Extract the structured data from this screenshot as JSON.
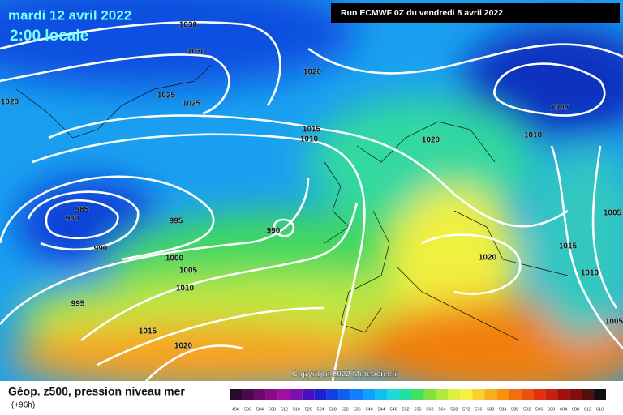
{
  "header": {
    "date": "mardi 12 avril 2022",
    "time": "2:00 locale",
    "run": "Run ECMWF 0Z du vendredi 8 avril 2022"
  },
  "isobar_labels": [
    "1030",
    "1030",
    "1020",
    "1020",
    "1025",
    "1025",
    "1015",
    "1010",
    "1020",
    "1005",
    "1010",
    "985",
    "980",
    "995",
    "990",
    "990",
    "1000",
    "1005",
    "1010",
    "995",
    "1020",
    "1015",
    "1010",
    "1005",
    "1005",
    "1015",
    "1020"
  ],
  "copyright": "Copyright 2022 Meteociel.fr",
  "footer": {
    "title": "Géop. z500, pression niveau mer",
    "lead": "(+96h)"
  },
  "scale": {
    "labels": [
      "496",
      "500",
      "504",
      "508",
      "512",
      "516",
      "520",
      "524",
      "528",
      "532",
      "536",
      "540",
      "544",
      "548",
      "552",
      "556",
      "560",
      "564",
      "568",
      "572",
      "576",
      "580",
      "584",
      "588",
      "592",
      "596",
      "600",
      "604",
      "608",
      "612",
      "616"
    ],
    "colors": [
      "#2a0a2a",
      "#4a0a4a",
      "#6a0a6a",
      "#8a0a8a",
      "#a010a0",
      "#7a10b0",
      "#4a10c0",
      "#2020d0",
      "#1040e0",
      "#1060f0",
      "#1080ff",
      "#10a0ff",
      "#10c0f0",
      "#20d8d8",
      "#20e0a0",
      "#40e060",
      "#80e040",
      "#b0e840",
      "#e0f040",
      "#f8f040",
      "#f8d030",
      "#f8b020",
      "#f89010",
      "#f07010",
      "#e85010",
      "#e03010",
      "#c82010",
      "#a01010",
      "#801010",
      "#501010",
      "#101010"
    ]
  }
}
